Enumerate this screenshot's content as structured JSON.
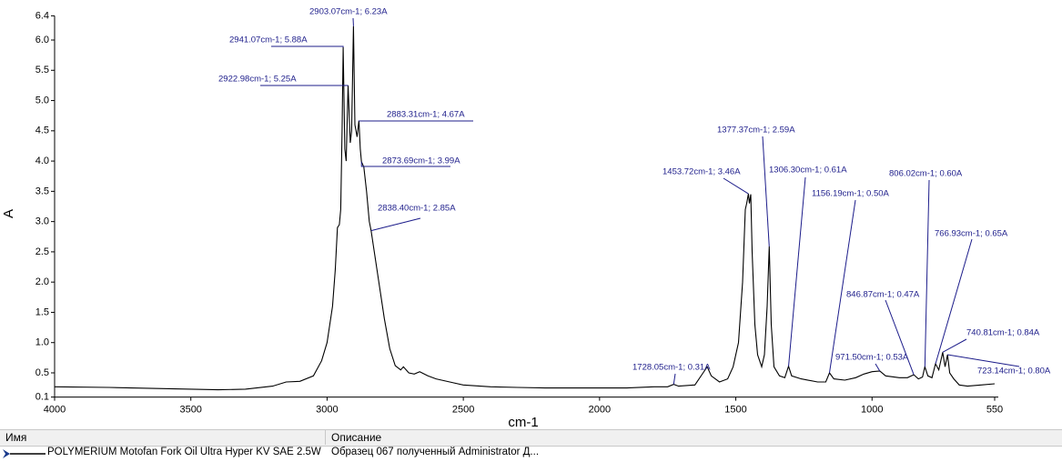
{
  "chart_data": {
    "type": "line",
    "xlabel": "cm-1",
    "ylabel": "A",
    "xlim": [
      4000,
      550
    ],
    "xticks": [
      4000,
      3500,
      3000,
      2500,
      2000,
      1500,
      1000,
      550
    ],
    "ylim": [
      0.1,
      6.4
    ],
    "yticks": [
      0.1,
      0.5,
      {
        "value": 1,
        "label": "1.0"
      },
      1.5,
      {
        "value": 2,
        "label": "2.0"
      },
      2.5,
      {
        "value": 3,
        "label": "3.0"
      },
      3.5,
      {
        "value": 4,
        "label": "4.0"
      },
      4.5,
      {
        "value": 5,
        "label": "5.0"
      },
      5.5,
      {
        "value": 6,
        "label": "6.0"
      },
      6.4
    ],
    "series": [
      {
        "name": "POLYMERIUM Motofan Fork Oil Ultra Hyper KV SAE 2.5W",
        "color": "#000000",
        "x": [
          4000,
          3800,
          3600,
          3400,
          3300,
          3200,
          3150,
          3100,
          3050,
          3020,
          3000,
          2980,
          2970,
          2962,
          2955,
          2950,
          2945,
          2941.07,
          2935,
          2930,
          2922.98,
          2915,
          2910,
          2903.07,
          2898,
          2890,
          2883.31,
          2878,
          2873.69,
          2865,
          2855,
          2845,
          2838.4,
          2830,
          2810,
          2790,
          2770,
          2750,
          2730,
          2720,
          2700,
          2680,
          2660,
          2630,
          2600,
          2550,
          2500,
          2400,
          2300,
          2200,
          2100,
          2000,
          1900,
          1800,
          1750,
          1728.05,
          1710,
          1650,
          1620,
          1605,
          1590,
          1560,
          1530,
          1510,
          1490,
          1475,
          1465,
          1460,
          1453.72,
          1450,
          1445,
          1440,
          1430,
          1420,
          1405,
          1395,
          1385,
          1377.37,
          1370,
          1360,
          1340,
          1320,
          1306.3,
          1295,
          1260,
          1200,
          1170,
          1156.19,
          1140,
          1100,
          1060,
          1030,
          1000,
          971.5,
          950,
          900,
          870,
          846.87,
          830,
          815,
          806.02,
          795,
          780,
          766.93,
          755,
          740.81,
          732,
          723.14,
          715,
          700,
          680,
          650,
          600,
          550
        ],
        "values": [
          0.27,
          0.26,
          0.24,
          0.22,
          0.23,
          0.28,
          0.35,
          0.36,
          0.45,
          0.7,
          1.0,
          1.6,
          2.2,
          2.9,
          2.95,
          3.2,
          4.5,
          5.88,
          4.2,
          4.0,
          5.25,
          4.3,
          4.5,
          6.23,
          4.6,
          4.4,
          4.67,
          4.2,
          3.99,
          3.9,
          3.5,
          3.0,
          2.85,
          2.6,
          2.0,
          1.4,
          0.9,
          0.62,
          0.55,
          0.6,
          0.5,
          0.48,
          0.52,
          0.45,
          0.4,
          0.35,
          0.3,
          0.27,
          0.26,
          0.25,
          0.25,
          0.25,
          0.25,
          0.27,
          0.27,
          0.31,
          0.28,
          0.3,
          0.5,
          0.6,
          0.45,
          0.35,
          0.4,
          0.6,
          1.0,
          2.0,
          3.2,
          3.3,
          3.46,
          3.3,
          3.45,
          2.5,
          1.3,
          0.8,
          0.6,
          0.8,
          1.6,
          2.59,
          1.3,
          0.6,
          0.45,
          0.42,
          0.61,
          0.45,
          0.4,
          0.35,
          0.35,
          0.5,
          0.4,
          0.38,
          0.42,
          0.48,
          0.52,
          0.53,
          0.45,
          0.42,
          0.42,
          0.47,
          0.4,
          0.43,
          0.6,
          0.45,
          0.42,
          0.65,
          0.55,
          0.84,
          0.6,
          0.8,
          0.5,
          0.4,
          0.3,
          0.28,
          0.3,
          0.32
        ]
      }
    ],
    "annotations": [
      {
        "text": "2903.07cm-1; 6.23A",
        "x": 2903.07,
        "y": 6.23
      },
      {
        "text": "2941.07cm-1; 5.88A",
        "x": 2941.07,
        "y": 5.88
      },
      {
        "text": "2922.98cm-1; 5.25A",
        "x": 2922.98,
        "y": 5.25
      },
      {
        "text": "2883.31cm-1; 4.67A",
        "x": 2883.31,
        "y": 4.67
      },
      {
        "text": "2873.69cm-1; 3.99A",
        "x": 2873.69,
        "y": 3.99
      },
      {
        "text": "2838.40cm-1; 2.85A",
        "x": 2838.4,
        "y": 2.85
      },
      {
        "text": "1377.37cm-1; 2.59A",
        "x": 1377.37,
        "y": 2.59
      },
      {
        "text": "1453.72cm-1; 3.46A",
        "x": 1453.72,
        "y": 3.46
      },
      {
        "text": "1306.30cm-1; 0.61A",
        "x": 1306.3,
        "y": 0.61
      },
      {
        "text": "1156.19cm-1; 0.50A",
        "x": 1156.19,
        "y": 0.5
      },
      {
        "text": "806.02cm-1; 0.60A",
        "x": 806.02,
        "y": 0.6
      },
      {
        "text": "766.93cm-1; 0.65A",
        "x": 766.93,
        "y": 0.65
      },
      {
        "text": "846.87cm-1; 0.47A",
        "x": 846.87,
        "y": 0.47
      },
      {
        "text": "740.81cm-1; 0.84A",
        "x": 740.81,
        "y": 0.84
      },
      {
        "text": "971.50cm-1; 0.53A",
        "x": 971.5,
        "y": 0.53
      },
      {
        "text": "1728.05cm-1; 0.31A",
        "x": 1728.05,
        "y": 0.31
      },
      {
        "text": "723.14cm-1; 0.80A",
        "x": 723.14,
        "y": 0.8
      }
    ]
  },
  "legend_table": {
    "headers": [
      "Имя",
      "Описание"
    ],
    "description": "Образец 067 полученный Administrator Д..."
  }
}
